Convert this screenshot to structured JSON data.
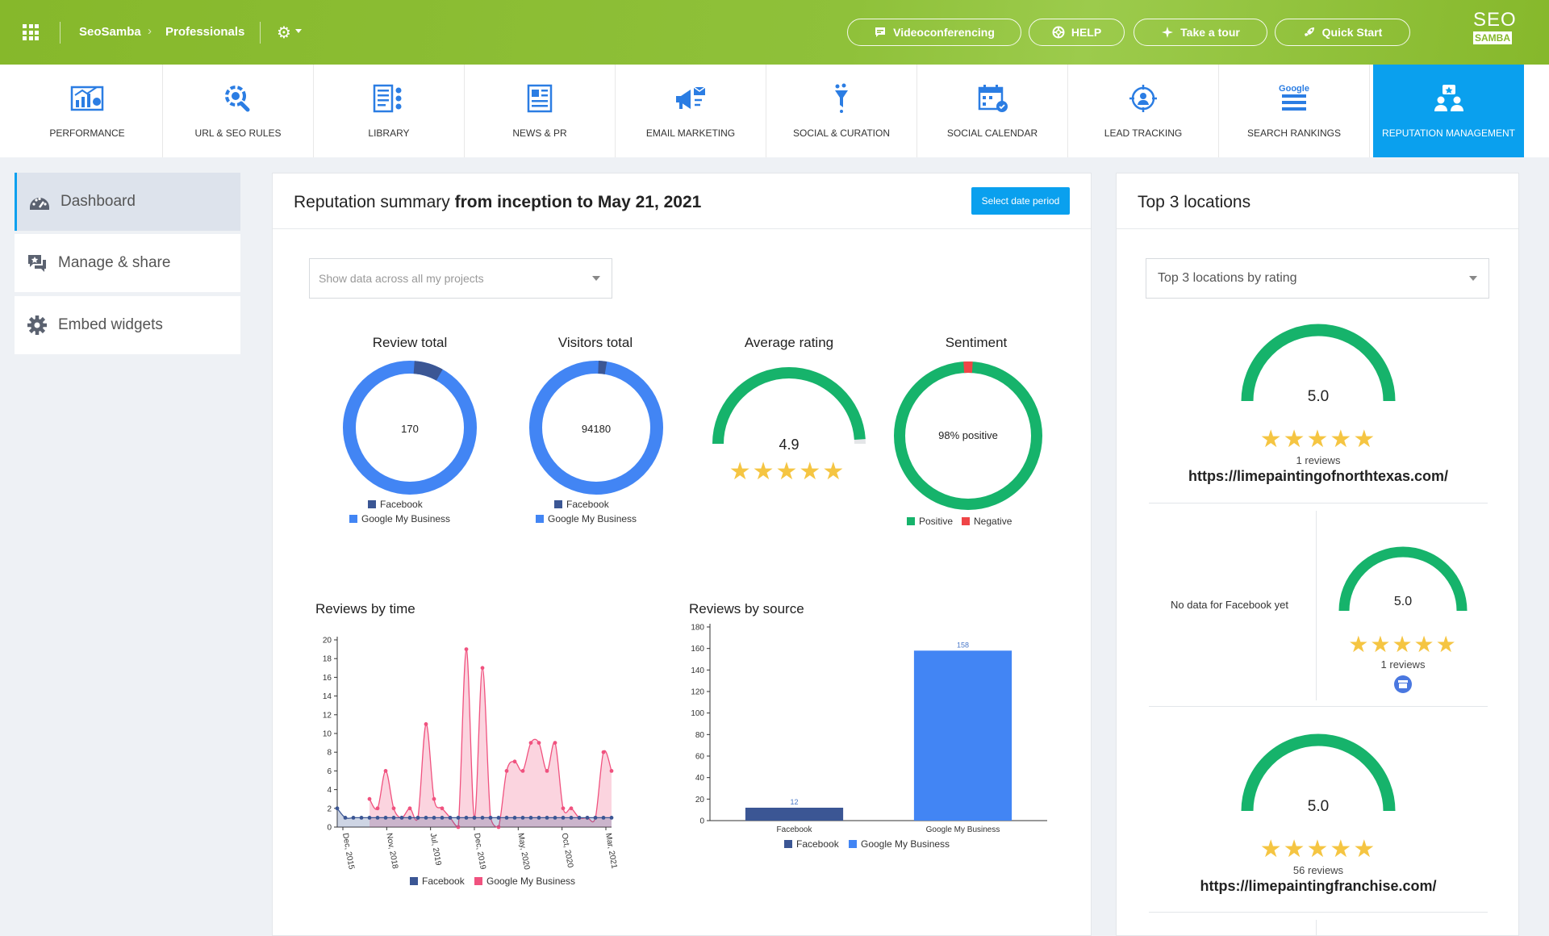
{
  "topbar": {
    "breadcrumb": [
      "SeoSamba",
      "Professionals"
    ],
    "buttons": [
      {
        "label": "Videoconferencing",
        "icon": "chat-icon"
      },
      {
        "label": "HELP",
        "icon": "lifebuoy-icon"
      },
      {
        "label": "Take a tour",
        "icon": "sparkle-icon"
      },
      {
        "label": "Quick Start",
        "icon": "rocket-icon"
      }
    ],
    "logo": {
      "top": "SEO",
      "bottom": "SAMBA"
    }
  },
  "modules": [
    {
      "label": "PERFORMANCE",
      "icon": "performance-icon"
    },
    {
      "label": "URL & SEO RULES",
      "icon": "url-rules-icon"
    },
    {
      "label": "LIBRARY",
      "icon": "library-icon"
    },
    {
      "label": "NEWS & PR",
      "icon": "news-icon"
    },
    {
      "label": "EMAIL MARKETING",
      "icon": "email-marketing-icon"
    },
    {
      "label": "SOCIAL & CURATION",
      "icon": "social-curation-icon"
    },
    {
      "label": "SOCIAL CALENDAR",
      "icon": "social-calendar-icon"
    },
    {
      "label": "LEAD TRACKING",
      "icon": "lead-tracking-icon"
    },
    {
      "label": "SEARCH RANKINGS",
      "icon": "search-rankings-icon"
    },
    {
      "label": "REPUTATION MANAGEMENT",
      "icon": "reputation-icon",
      "active": true
    }
  ],
  "sidebar": {
    "items": [
      {
        "label": "Dashboard",
        "icon": "dashboard-icon",
        "active": true
      },
      {
        "label": "Manage & share",
        "icon": "manage-share-icon"
      },
      {
        "label": "Embed widgets",
        "icon": "gear-icon"
      }
    ]
  },
  "summary": {
    "title_prefix": "Reputation summary",
    "title_bold": "from inception to May 21, 2021",
    "date_button": "Select date period",
    "project_select": "Show data across all my projects"
  },
  "legend": {
    "facebook": "Facebook",
    "gmb": "Google My Business",
    "positive": "Positive",
    "negative": "Negative"
  },
  "widgets": {
    "review_total": {
      "title": "Review total",
      "value": "170",
      "facebook": 12,
      "gmb": 158
    },
    "visitors_total": {
      "title": "Visitors total",
      "value": "94180",
      "facebook_share": 0.02
    },
    "average_rating": {
      "title": "Average rating",
      "value": "4.9",
      "rating": 4.9,
      "max": 5,
      "stars": "★★★★★"
    },
    "sentiment": {
      "title": "Sentiment",
      "value": "98% positive",
      "positive_pct": 98,
      "negative_pct": 2
    }
  },
  "chart_data": [
    {
      "type": "line",
      "title": "Reviews by time",
      "x_ticks": [
        "Dec, 2015",
        "Nov, 2018",
        "Jul, 2019",
        "Dec, 2019",
        "May, 2020",
        "Oct, 2020",
        "Mar, 2021"
      ],
      "ylim": [
        0,
        20
      ],
      "y_ticks": [
        0,
        2,
        4,
        6,
        8,
        10,
        12,
        14,
        16,
        18,
        20
      ],
      "series": [
        {
          "name": "Facebook",
          "color": "#3b5694",
          "values": [
            2,
            1,
            1,
            1,
            1,
            1,
            1,
            1,
            1,
            1,
            1,
            1,
            1,
            1,
            1,
            1,
            1,
            1,
            1,
            1,
            1,
            1,
            1,
            1,
            1,
            1,
            1,
            1,
            1,
            1,
            1,
            1,
            1,
            1,
            1
          ]
        },
        {
          "name": "Google My Business",
          "color": "#f0527f",
          "values": [
            null,
            null,
            null,
            null,
            3,
            2,
            6,
            2,
            1,
            2,
            1,
            11,
            3,
            2,
            1,
            0,
            19,
            1,
            17,
            1,
            0,
            6,
            7,
            6,
            9,
            9,
            6,
            9,
            2,
            2,
            1,
            1,
            1,
            8,
            6
          ]
        }
      ]
    },
    {
      "type": "bar",
      "title": "Reviews by source",
      "categories": [
        "Facebook",
        "Google My Business"
      ],
      "values": [
        12,
        158
      ],
      "colors": [
        "#3b5694",
        "#4285f4"
      ],
      "ylim": [
        0,
        180
      ],
      "y_ticks": [
        0,
        20,
        40,
        60,
        80,
        100,
        120,
        140,
        160,
        180
      ]
    }
  ],
  "locations": {
    "title": "Top 3 locations",
    "select": "Top 3 locations by rating",
    "items": [
      {
        "rating": "5.0",
        "stars": "★★★★★",
        "reviews": "1 reviews",
        "url": "https://limepaintingofnorthtexas.com/"
      },
      {
        "no_data": "No data for Facebook yet",
        "rating": "5.0",
        "stars": "★★★★★",
        "reviews": "1 reviews",
        "source_icon": "gmb-icon"
      },
      {
        "rating": "5.0",
        "stars": "★★★★★",
        "reviews": "56 reviews",
        "url": "https://limepaintingfranchise.com/"
      }
    ]
  }
}
